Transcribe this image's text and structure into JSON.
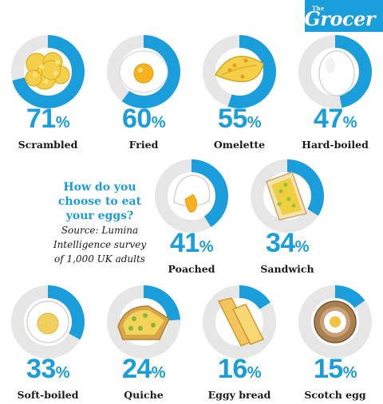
{
  "brand": {
    "small": "The",
    "main": "Grocer"
  },
  "intro": {
    "question_lines": [
      "How do you",
      "choose to eat",
      "your eggs?"
    ],
    "source_lines": [
      "Source: Lumina",
      "Intelligence survey",
      "of 1,000 UK adults"
    ]
  },
  "colors": {
    "accent": "#1a9ddb",
    "track": "#e6e6e6"
  },
  "chart_data": {
    "type": "bar",
    "title": "How do you choose to eat your eggs?",
    "note": "Source: Lumina Intelligence survey of 1,000 UK adults",
    "unit": "%",
    "categories": [
      "Scrambled",
      "Fried",
      "Omelette",
      "Hard-boiled",
      "Poached",
      "Sandwich",
      "Soft-boiled",
      "Quiche",
      "Eggy bread",
      "Scotch egg"
    ],
    "values": [
      71,
      60,
      55,
      47,
      41,
      34,
      33,
      24,
      16,
      15
    ],
    "icons": [
      "scrambled-egg-icon",
      "fried-egg-icon",
      "omelette-icon",
      "hard-boiled-egg-icon",
      "poached-egg-icon",
      "egg-sandwich-icon",
      "soft-boiled-egg-icon",
      "quiche-icon",
      "eggy-bread-icon",
      "scotch-egg-icon"
    ]
  }
}
